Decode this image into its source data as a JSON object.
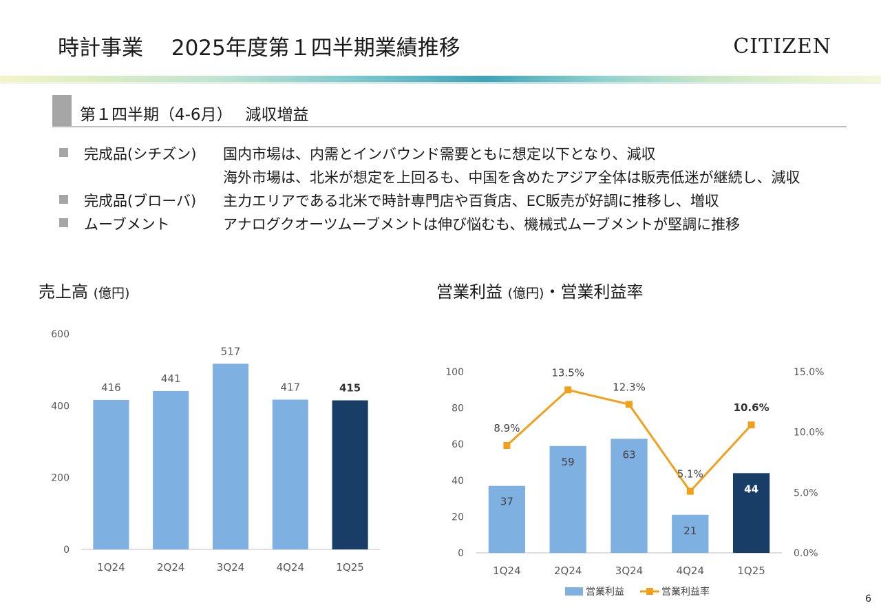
{
  "header": {
    "title": "時計事業　 2025年度第１四半期業績推移",
    "logo": "CITIZEN"
  },
  "section": {
    "title": "第１四半期（4-6月）　 減収増益"
  },
  "bullets": [
    {
      "category": "完成品(シチズン)",
      "lines": [
        "国内市場は、内需とインバウンド需要ともに想定以下となり、減収",
        "海外市場は、北米が想定を上回るも、中国を含めたアジア全体は販売低迷が継続し、減収"
      ]
    },
    {
      "category": "完成品(ブローバ)",
      "lines": [
        "主力エリアである北米で時計専門店や百貨店、EC販売が好調に推移し、増収"
      ]
    },
    {
      "category": "ムーブメント",
      "lines": [
        "アナログクオーツムーブメントは伸び悩むも、機械式ムーブメントが堅調に推移"
      ]
    }
  ],
  "page_number": "6",
  "colors": {
    "bar_light": "#7fb0e2",
    "bar_dark": "#183d66",
    "line": "#f2a01c",
    "axis": "#bfbfbf",
    "tick_text": "#595959"
  },
  "chart_data": [
    {
      "type": "bar",
      "title": "売上高",
      "title_unit": "(億円)",
      "categories": [
        "1Q24",
        "2Q24",
        "3Q24",
        "4Q24",
        "1Q25"
      ],
      "series": [
        {
          "values": [
            416,
            441,
            517,
            417,
            415
          ]
        }
      ],
      "highlight_index": 4,
      "ylim": [
        0,
        600
      ],
      "yticks": [
        0,
        200,
        400,
        600
      ],
      "grid": false
    },
    {
      "type": "bar+line",
      "title": "営業利益",
      "title_unit": "(億円)",
      "title_suffix": "・営業利益率",
      "categories": [
        "1Q24",
        "2Q24",
        "3Q24",
        "4Q24",
        "1Q25"
      ],
      "series": [
        {
          "name": "営業利益",
          "type": "bar",
          "axis": "left",
          "values": [
            37,
            59,
            63,
            21,
            44
          ]
        },
        {
          "name": "営業利益率",
          "type": "line",
          "axis": "right",
          "values": [
            8.9,
            13.5,
            12.3,
            5.1,
            10.6
          ],
          "labels": [
            "8.9%",
            "13.5%",
            "12.3%",
            "5.1%",
            "10.6%"
          ]
        }
      ],
      "highlight_index": 4,
      "ylim": [
        0,
        100
      ],
      "yticks": [
        0,
        20,
        40,
        60,
        80,
        100
      ],
      "y2lim": [
        0,
        15
      ],
      "y2ticks": [
        "0.0%",
        "5.0%",
        "10.0%",
        "15.0%"
      ],
      "legend": "bottom",
      "grid": false
    }
  ]
}
